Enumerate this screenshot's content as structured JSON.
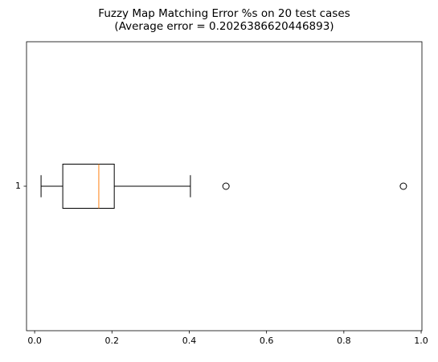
{
  "chart_data": {
    "type": "box",
    "title": [
      "Fuzzy Map Matching Error %s on 20 test cases",
      "(Average error = 0.2026386620446893)"
    ],
    "orientation": "horizontal",
    "categories": [
      "1"
    ],
    "boxes": [
      {
        "whislo": 0.0166,
        "q1": 0.0728,
        "med": 0.166,
        "q3": 0.206,
        "whishi": 0.403,
        "fliers": [
          0.495,
          0.954
        ]
      }
    ],
    "color": "#000000",
    "median_color": "#ff7f0e",
    "xlim": [
      -0.021,
      1.002
    ],
    "xticks": [
      {
        "value": 0,
        "label": "0.0"
      },
      0.2,
      0.4,
      0.6,
      0.8,
      {
        "value": 1,
        "label": "1.0"
      }
    ],
    "ylim": [
      0.5,
      1.5
    ]
  }
}
